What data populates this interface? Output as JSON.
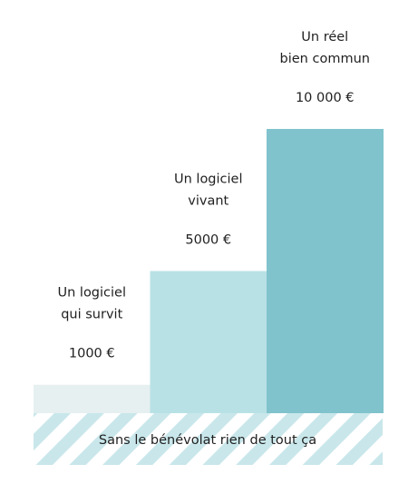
{
  "chart_data": {
    "type": "bar",
    "categories": [
      "Un logiciel qui survit",
      "Un logiciel vivant",
      "Un réel bien commun"
    ],
    "label_lines": [
      [
        "Un logiciel",
        "qui survit"
      ],
      [
        "Un logiciel",
        "vivant"
      ],
      [
        "Un réel",
        "bien commun"
      ]
    ],
    "values": [
      1000,
      5000,
      10000
    ],
    "value_labels": [
      "1000 €",
      "5000 €",
      "10 000 €"
    ],
    "unit": "€",
    "ylim": [
      0,
      10000
    ],
    "grid": false,
    "colors": [
      "#e6f0f1",
      "#b8e1e5",
      "#80c3cc"
    ],
    "base": {
      "text": "Sans le bénévolat rien de tout ça",
      "stripe_color": "#c9e7eb",
      "background_color": "#ffffff"
    }
  }
}
